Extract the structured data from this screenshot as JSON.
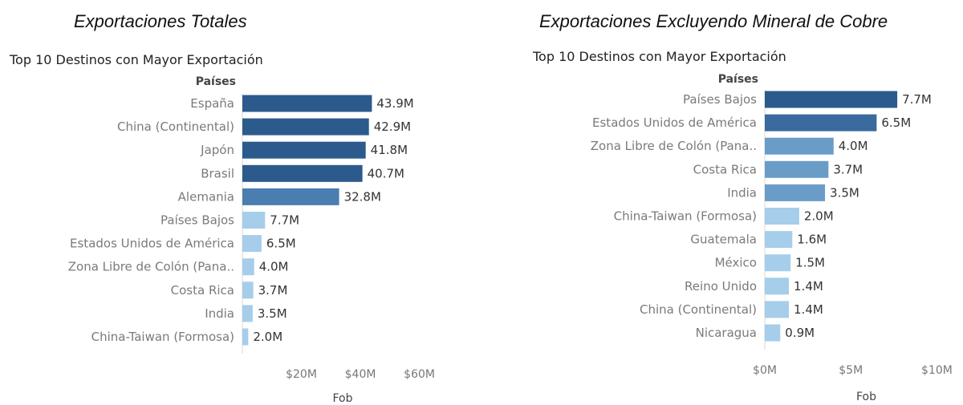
{
  "headings": {
    "left": "Exportaciones Totales",
    "right": "Exportaciones Excluyendo Mineral de Cobre"
  },
  "colors": {
    "dark_blue": "#2c5a8c",
    "mid_blue": "#4a7db0",
    "steel_blue": "#6a9cc8",
    "light_blue": "#a6cdea",
    "axis_line": "#d8d8d8"
  },
  "chart_data": [
    {
      "type": "bar",
      "orientation": "horizontal",
      "title": "Top 10  Destinos con Mayor Exportación",
      "row_header": "Países",
      "xlabel": "Fob",
      "ylabel": "",
      "xlim": [
        0,
        68
      ],
      "unit": "millions USD",
      "xticks": [
        20,
        40,
        60
      ],
      "xtick_labels": [
        "$20M",
        "$40M",
        "$60M"
      ],
      "grid": false,
      "categories": [
        "España",
        "China (Continental)",
        "Japón",
        "Brasil",
        "Alemania",
        "Países Bajos",
        "Estados Unidos de América",
        "Zona Libre de Colón (Pana..",
        "Costa Rica",
        "India",
        "China-Taiwan (Formosa)"
      ],
      "values": [
        43.9,
        42.9,
        41.8,
        40.7,
        32.8,
        7.7,
        6.5,
        4.0,
        3.7,
        3.5,
        2.0
      ],
      "value_labels": [
        "43.9M",
        "42.9M",
        "41.8M",
        "40.7M",
        "32.8M",
        "7.7M",
        "6.5M",
        "4.0M",
        "3.7M",
        "3.5M",
        "2.0M"
      ],
      "bar_colors": [
        "#2c5a8c",
        "#2c5a8c",
        "#2c5a8c",
        "#2c5a8c",
        "#4a7db0",
        "#a6cdea",
        "#a6cdea",
        "#a6cdea",
        "#a6cdea",
        "#a6cdea",
        "#a6cdea"
      ]
    },
    {
      "type": "bar",
      "orientation": "horizontal",
      "title": "Top 10  Destinos con Mayor Exportación",
      "row_header": "Países",
      "xlabel": "Fob",
      "ylabel": "",
      "xlim": [
        0,
        11.8
      ],
      "unit": "millions USD",
      "xticks": [
        0,
        5,
        10
      ],
      "xtick_labels": [
        "$0M",
        "$5M",
        "$10M"
      ],
      "grid": false,
      "categories": [
        "Países Bajos",
        "Estados Unidos de América",
        "Zona Libre de Colón (Pana..",
        "Costa Rica",
        "India",
        "China-Taiwan (Formosa)",
        "Guatemala",
        "México",
        "Reino Unido",
        "China (Continental)",
        "Nicaragua"
      ],
      "values": [
        7.7,
        6.5,
        4.0,
        3.7,
        3.5,
        2.0,
        1.6,
        1.5,
        1.4,
        1.4,
        0.9
      ],
      "value_labels": [
        "7.7M",
        "6.5M",
        "4.0M",
        "3.7M",
        "3.5M",
        "2.0M",
        "1.6M",
        "1.5M",
        "1.4M",
        "1.4M",
        "0.9M"
      ],
      "bar_colors": [
        "#2c5a8c",
        "#3a6a9e",
        "#6a9cc8",
        "#6a9cc8",
        "#6a9cc8",
        "#a6cdea",
        "#a6cdea",
        "#a6cdea",
        "#a6cdea",
        "#a6cdea",
        "#a6cdea"
      ]
    }
  ]
}
